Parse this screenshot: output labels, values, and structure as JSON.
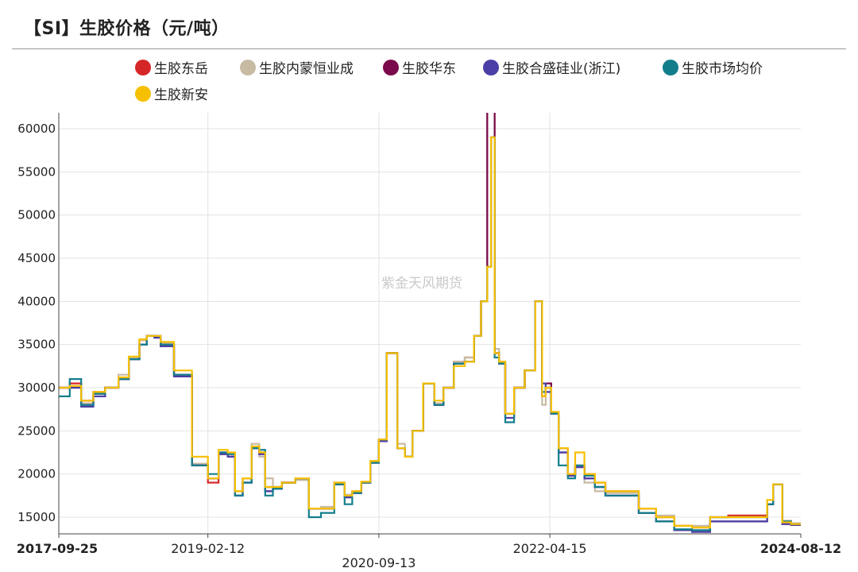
{
  "header": {
    "title": "【SI】生胶价格（元/吨）",
    "watermark": "紫金天风期货"
  },
  "chart_data": {
    "type": "line",
    "title": "【SI】生胶价格（元/吨）",
    "xlabel": "",
    "ylabel": "",
    "ylim": [
      13000,
      62000
    ],
    "yticks": [
      15000,
      20000,
      25000,
      30000,
      35000,
      40000,
      45000,
      50000,
      55000,
      60000
    ],
    "x_tick_labels": [
      {
        "label": "2017-09-25",
        "date": "2017-09-25",
        "bold": true
      },
      {
        "label": "2019-02-12",
        "date": "2019-02-12",
        "bold": false
      },
      {
        "label": "2020-09-13",
        "date": "2020-09-13",
        "bold": false
      },
      {
        "label": "2022-04-15",
        "date": "2022-04-15",
        "bold": false
      },
      {
        "label": "2024-08-12",
        "date": "2024-08-12",
        "bold": true
      }
    ],
    "xlim": [
      "2017-09-25",
      "2024-08-12"
    ],
    "grid": true,
    "legend_position": "top",
    "x": [
      "2017-09-25",
      "2017-11-01",
      "2017-12-10",
      "2018-01-20",
      "2018-03-01",
      "2018-04-15",
      "2018-05-20",
      "2018-06-25",
      "2018-07-20",
      "2018-08-15",
      "2018-09-05",
      "2018-10-20",
      "2018-12-20",
      "2019-02-12",
      "2019-03-20",
      "2019-04-20",
      "2019-05-15",
      "2019-06-10",
      "2019-07-10",
      "2019-08-05",
      "2019-08-25",
      "2019-09-20",
      "2019-10-20",
      "2019-12-05",
      "2020-01-20",
      "2020-03-01",
      "2020-04-15",
      "2020-05-20",
      "2020-06-15",
      "2020-07-15",
      "2020-08-15",
      "2020-09-13",
      "2020-10-10",
      "2020-11-15",
      "2020-12-10",
      "2021-01-05",
      "2021-02-10",
      "2021-03-20",
      "2021-04-20",
      "2021-05-25",
      "2021-07-01",
      "2021-08-01",
      "2021-08-25",
      "2021-09-15",
      "2021-09-28",
      "2021-10-10",
      "2021-10-25",
      "2021-11-15",
      "2021-12-15",
      "2022-01-20",
      "2022-02-25",
      "2022-03-20",
      "2022-04-01",
      "2022-04-20",
      "2022-05-15",
      "2022-06-15",
      "2022-07-10",
      "2022-08-10",
      "2022-09-15",
      "2022-10-20",
      "2022-12-15",
      "2023-02-10",
      "2023-04-10",
      "2023-06-10",
      "2023-08-10",
      "2023-10-10",
      "2023-12-10",
      "2024-02-10",
      "2024-03-25",
      "2024-04-20",
      "2024-05-10",
      "2024-06-10",
      "2024-07-10",
      "2024-08-12"
    ],
    "series": [
      {
        "name": "生胶东岳",
        "color": "#d62728",
        "values": [
          30000,
          30500,
          28500,
          29500,
          30000,
          31000,
          33500,
          35500,
          36000,
          36000,
          35000,
          31500,
          21000,
          19000,
          22500,
          22000,
          18000,
          19500,
          23000,
          22500,
          18500,
          18500,
          19000,
          19500,
          16000,
          16000,
          19000,
          17500,
          18000,
          19000,
          21500,
          24000,
          34000,
          23000,
          22000,
          25000,
          30500,
          28000,
          30000,
          33000,
          33500,
          36000,
          40000,
          62000,
          62000,
          34000,
          33000,
          27000,
          30000,
          32000,
          40000,
          29000,
          30000,
          27000,
          23000,
          20000,
          21000,
          20000,
          19000,
          18000,
          18000,
          16000,
          15000,
          14000,
          13800,
          15000,
          15200,
          15200,
          15200,
          16500,
          18800,
          14500,
          14200,
          14200
        ]
      },
      {
        "name": "生胶内蒙恒业成",
        "color": "#c8bba4",
        "values": [
          30000,
          30200,
          28200,
          29500,
          30000,
          31500,
          33500,
          35500,
          36000,
          36000,
          35200,
          31500,
          21200,
          19500,
          22500,
          22300,
          18000,
          19500,
          23500,
          22000,
          19500,
          18500,
          19000,
          19300,
          16000,
          16200,
          19000,
          17600,
          18000,
          19100,
          21500,
          24000,
          34000,
          23500,
          22000,
          25000,
          30500,
          28200,
          30000,
          33000,
          33500,
          36000,
          40000,
          62000,
          62000,
          34500,
          33000,
          27000,
          30000,
          32000,
          40000,
          28000,
          30000,
          27000,
          23000,
          20000,
          21000,
          19000,
          18000,
          17800,
          17800,
          16000,
          15200,
          14000,
          14000,
          15000,
          15000,
          15000,
          15000,
          16500,
          18800,
          14600,
          14300,
          14300
        ]
      },
      {
        "name": "生胶华东",
        "color": "#7a0a4c",
        "values": [
          30000,
          30000,
          28000,
          29300,
          30000,
          31000,
          33300,
          35000,
          36000,
          35800,
          34800,
          31500,
          21000,
          19500,
          22300,
          22000,
          17500,
          19000,
          23000,
          22300,
          18000,
          18300,
          19000,
          19500,
          16000,
          16000,
          18800,
          17300,
          17800,
          19000,
          21300,
          23800,
          34000,
          23000,
          22000,
          25000,
          30500,
          28000,
          30000,
          32800,
          33000,
          36000,
          40000,
          62000,
          62000,
          34000,
          32800,
          27000,
          30000,
          32000,
          40000,
          29000,
          30500,
          27000,
          22500,
          19800,
          20800,
          19500,
          18500,
          17500,
          17500,
          15500,
          14500,
          13500,
          13300,
          14500,
          14500,
          14500,
          14500,
          16500,
          18800,
          14200,
          14100,
          14100
        ]
      },
      {
        "name": "生胶合盛硅业(浙江)",
        "color": "#4b3fa5",
        "values": [
          30000,
          30000,
          27800,
          29000,
          30000,
          31000,
          33300,
          35000,
          36000,
          35800,
          34800,
          31300,
          21000,
          19500,
          22300,
          22000,
          17500,
          19000,
          23000,
          22300,
          18000,
          18300,
          19000,
          19500,
          16000,
          16000,
          18800,
          17300,
          17800,
          19000,
          21300,
          23800,
          34000,
          23000,
          22000,
          25000,
          30500,
          28000,
          30000,
          32800,
          33000,
          36000,
          40000,
          44000,
          59000,
          34000,
          32800,
          26500,
          30000,
          32000,
          40000,
          30500,
          29500,
          27000,
          22500,
          19800,
          20800,
          19500,
          18500,
          17500,
          17500,
          15500,
          14500,
          13500,
          13300,
          14500,
          14500,
          14500,
          14500,
          16500,
          18800,
          14200,
          14100,
          14100
        ]
      },
      {
        "name": "生胶市场均价",
        "color": "#127e8c",
        "values": [
          29000,
          31000,
          28000,
          29300,
          30000,
          31000,
          33300,
          35000,
          36000,
          36000,
          35000,
          31500,
          21000,
          20000,
          22500,
          22300,
          17500,
          19000,
          23000,
          22800,
          17500,
          18300,
          19000,
          19500,
          15000,
          15500,
          18800,
          16500,
          17800,
          19000,
          21300,
          24000,
          34000,
          23000,
          22000,
          25000,
          30500,
          28000,
          30000,
          32800,
          33000,
          36000,
          40000,
          44000,
          59000,
          33500,
          32800,
          26000,
          30000,
          32000,
          40000,
          29500,
          30000,
          27000,
          21000,
          19500,
          21000,
          19800,
          18500,
          17500,
          17500,
          15500,
          14500,
          13600,
          13500,
          15000,
          15000,
          15000,
          15000,
          16500,
          18800,
          14500,
          14200,
          14200
        ]
      },
      {
        "name": "生胶新安",
        "color": "#f6c000",
        "values": [
          30000,
          30200,
          28500,
          29500,
          30000,
          31200,
          33600,
          35600,
          36000,
          36000,
          35300,
          32000,
          22000,
          19500,
          22800,
          22500,
          18000,
          19500,
          23200,
          22500,
          18500,
          18500,
          19000,
          19500,
          16000,
          16000,
          19000,
          17500,
          18000,
          19100,
          21500,
          24000,
          34000,
          23000,
          22000,
          25000,
          30500,
          28500,
          30000,
          32500,
          33000,
          36000,
          40000,
          44000,
          59000,
          34000,
          33000,
          27000,
          30000,
          32000,
          40000,
          29000,
          30000,
          27200,
          23000,
          20000,
          22500,
          20000,
          19000,
          18000,
          18000,
          16000,
          15000,
          14000,
          13800,
          15000,
          15000,
          15000,
          15000,
          17000,
          18800,
          14400,
          14200,
          14200
        ]
      }
    ]
  }
}
